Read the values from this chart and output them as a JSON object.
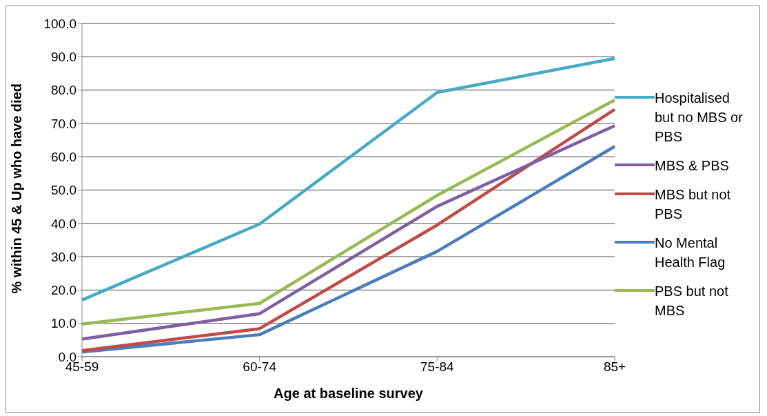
{
  "chart_data": {
    "type": "line",
    "xlabel": "Age at baseline survey",
    "ylabel": "% within 45 & Up who have died",
    "categories": [
      "45-59",
      "60-74",
      "75-84",
      "85+"
    ],
    "series": [
      {
        "name": "No Mental Health Flag",
        "color": "#4a7ebb",
        "values": [
          1.4,
          6.6,
          31.6,
          63.1
        ]
      },
      {
        "name": "MBS but not PBS",
        "color": "#be4b48",
        "values": [
          1.8,
          8.4,
          39.5,
          74.2
        ]
      },
      {
        "name": "PBS but not MBS",
        "color": "#98b954",
        "values": [
          9.8,
          16.0,
          48.4,
          77.0
        ]
      },
      {
        "name": "MBS & PBS",
        "color": "#7d60a0",
        "values": [
          5.3,
          12.9,
          45.1,
          69.3
        ]
      },
      {
        "name": "Hospitalised but no MBS or PBS",
        "color": "#46aac5",
        "values": [
          17.0,
          39.8,
          79.3,
          89.5
        ]
      }
    ],
    "ylim": [
      0,
      100
    ],
    "yticks": [
      {
        "value": 0,
        "label": "0.0"
      },
      {
        "value": 10,
        "label": "10.0"
      },
      {
        "value": 20,
        "label": "20.0"
      },
      {
        "value": 30,
        "label": "30.0"
      },
      {
        "value": 40,
        "label": "40.0"
      },
      {
        "value": 50,
        "label": "50.0"
      },
      {
        "value": 60,
        "label": "60.0"
      },
      {
        "value": 70,
        "label": "70.0"
      },
      {
        "value": 80,
        "label": "80.0"
      },
      {
        "value": 90,
        "label": "90.0"
      },
      {
        "value": 100,
        "label": "100.0"
      }
    ],
    "grid": "y",
    "legend": "right",
    "marker": "none",
    "line_style": "solid"
  }
}
